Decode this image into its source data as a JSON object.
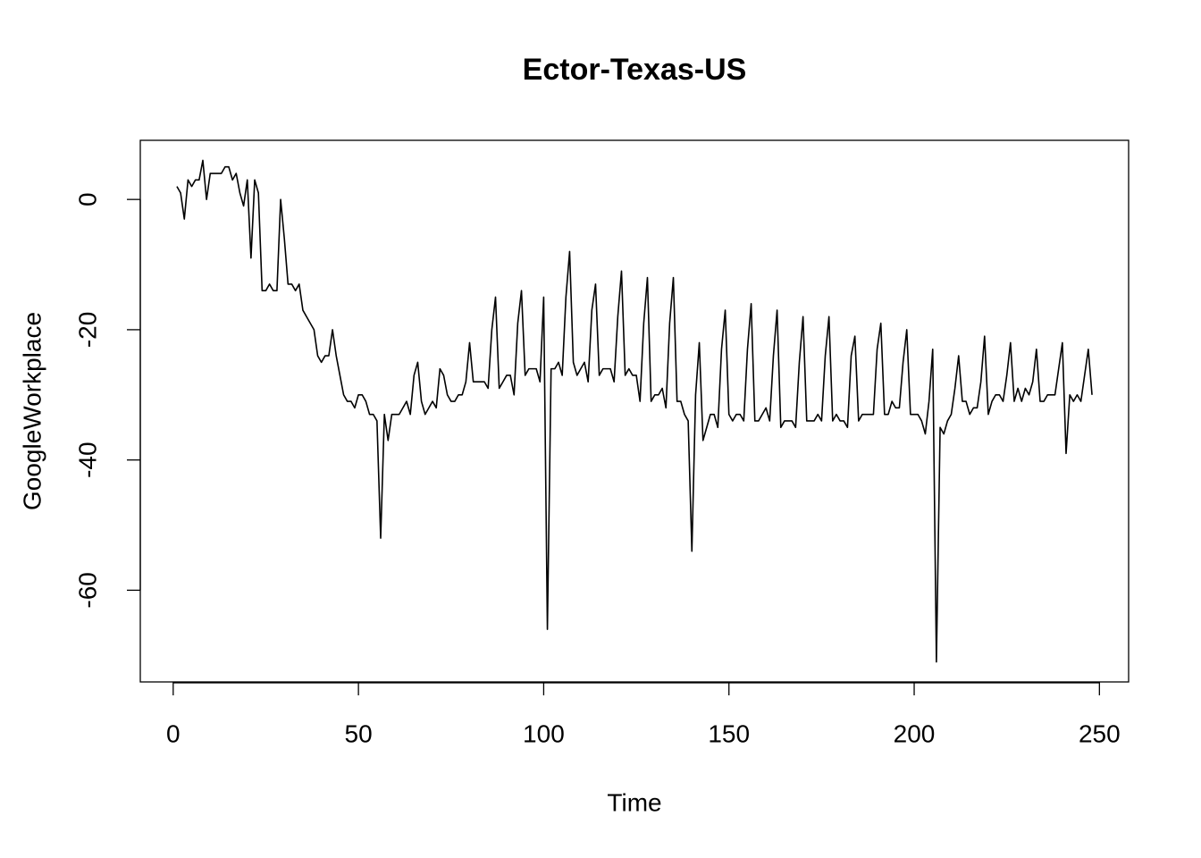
{
  "chart_data": {
    "type": "line",
    "title": "Ector-Texas-US",
    "x_label": "Time",
    "y_label": "GoogleWorkplace",
    "x": [
      1,
      2,
      3,
      4,
      5,
      6,
      7,
      8,
      9,
      10,
      11,
      12,
      13,
      14,
      15,
      16,
      17,
      18,
      19,
      20,
      21,
      22,
      23,
      24,
      25,
      26,
      27,
      28,
      29,
      30,
      31,
      32,
      33,
      34,
      35,
      36,
      37,
      38,
      39,
      40,
      41,
      42,
      43,
      44,
      45,
      46,
      47,
      48,
      49,
      50,
      51,
      52,
      53,
      54,
      55,
      56,
      57,
      58,
      59,
      60,
      61,
      62,
      63,
      64,
      65,
      66,
      67,
      68,
      69,
      70,
      71,
      72,
      73,
      74,
      75,
      76,
      77,
      78,
      79,
      80,
      81,
      82,
      83,
      84,
      85,
      86,
      87,
      88,
      89,
      90,
      91,
      92,
      93,
      94,
      95,
      96,
      97,
      98,
      99,
      100,
      101,
      102,
      103,
      104,
      105,
      106,
      107,
      108,
      109,
      110,
      111,
      112,
      113,
      114,
      115,
      116,
      117,
      118,
      119,
      120,
      121,
      122,
      123,
      124,
      125,
      126,
      127,
      128,
      129,
      130,
      131,
      132,
      133,
      134,
      135,
      136,
      137,
      138,
      139,
      140,
      141,
      142,
      143,
      144,
      145,
      146,
      147,
      148,
      149,
      150,
      151,
      152,
      153,
      154,
      155,
      156,
      157,
      158,
      159,
      160,
      161,
      162,
      163,
      164,
      165,
      166,
      167,
      168,
      169,
      170,
      171,
      172,
      173,
      174,
      175,
      176,
      177,
      178,
      179,
      180,
      181,
      182,
      183,
      184,
      185,
      186,
      187,
      188,
      189,
      190,
      191,
      192,
      193,
      194,
      195,
      196,
      197,
      198,
      199,
      200,
      201,
      202,
      203,
      204,
      205,
      206,
      207,
      208,
      209,
      210,
      211,
      212,
      213,
      214,
      215,
      216,
      217,
      218,
      219,
      220,
      221,
      222,
      223,
      224,
      225,
      226,
      227,
      228,
      229,
      230,
      231,
      232,
      233,
      234,
      235,
      236,
      237,
      238,
      239,
      240,
      241,
      242,
      243,
      244,
      245,
      246,
      247,
      248
    ],
    "series": [
      {
        "color": "#000000",
        "values": [
          2,
          1,
          -3,
          3,
          2,
          3,
          3,
          6,
          0,
          4,
          4,
          4,
          4,
          5,
          5,
          3,
          4,
          1,
          -1,
          3,
          -9,
          3,
          1,
          -14,
          -14,
          -13,
          -14,
          -14,
          0,
          -6,
          -13,
          -13,
          -14,
          -13,
          -17,
          -18,
          -19,
          -20,
          -24,
          -25,
          -24,
          -24,
          -20,
          -24,
          -27,
          -30,
          -31,
          -31,
          -32,
          -30,
          -30,
          -31,
          -33,
          -33,
          -34,
          -52,
          -33,
          -37,
          -33,
          -33,
          -33,
          -32,
          -31,
          -33,
          -27,
          -25,
          -31,
          -33,
          -32,
          -31,
          -32,
          -26,
          -27,
          -30,
          -31,
          -31,
          -30,
          -30,
          -28,
          -22,
          -28,
          -28,
          -28,
          -28,
          -29,
          -20,
          -15,
          -29,
          -28,
          -27,
          -27,
          -30,
          -19,
          -14,
          -27,
          -26,
          -26,
          -26,
          -28,
          -15,
          -66,
          -26,
          -26,
          -25,
          -27,
          -15,
          -8,
          -25,
          -27,
          -26,
          -25,
          -28,
          -17,
          -13,
          -27,
          -26,
          -26,
          -26,
          -28,
          -18,
          -11,
          -27,
          -26,
          -27,
          -27,
          -31,
          -19,
          -12,
          -31,
          -30,
          -30,
          -29,
          -32,
          -19,
          -12,
          -31,
          -31,
          -33,
          -34,
          -54,
          -30,
          -22,
          -37,
          -35,
          -33,
          -33,
          -35,
          -23,
          -17,
          -33,
          -34,
          -33,
          -33,
          -34,
          -23,
          -16,
          -34,
          -34,
          -33,
          -32,
          -34,
          -24,
          -17,
          -35,
          -34,
          -34,
          -34,
          -35,
          -25,
          -18,
          -34,
          -34,
          -34,
          -33,
          -34,
          -24,
          -18,
          -34,
          -33,
          -34,
          -34,
          -35,
          -24,
          -21,
          -34,
          -33,
          -33,
          -33,
          -33,
          -23,
          -19,
          -33,
          -33,
          -31,
          -32,
          -32,
          -25,
          -20,
          -33,
          -33,
          -33,
          -34,
          -36,
          -31,
          -23,
          -71,
          -35,
          -36,
          -34,
          -33,
          -29,
          -24,
          -31,
          -31,
          -33,
          -32,
          -32,
          -28,
          -21,
          -33,
          -31,
          -30,
          -30,
          -31,
          -27,
          -22,
          -31,
          -29,
          -31,
          -29,
          -30,
          -28,
          -23,
          -31,
          -31,
          -30,
          -30,
          -30,
          -26,
          -22,
          -39,
          -30,
          -31,
          -30,
          -31,
          -27,
          -23,
          -30
        ]
      }
    ],
    "xlim": [
      -8.88,
      257.88
    ],
    "ylim": [
      -74.08,
      9.08
    ],
    "xticks": [
      0,
      50,
      100,
      150,
      200,
      250
    ],
    "yticks": [
      -60,
      -40,
      -20,
      0
    ]
  }
}
